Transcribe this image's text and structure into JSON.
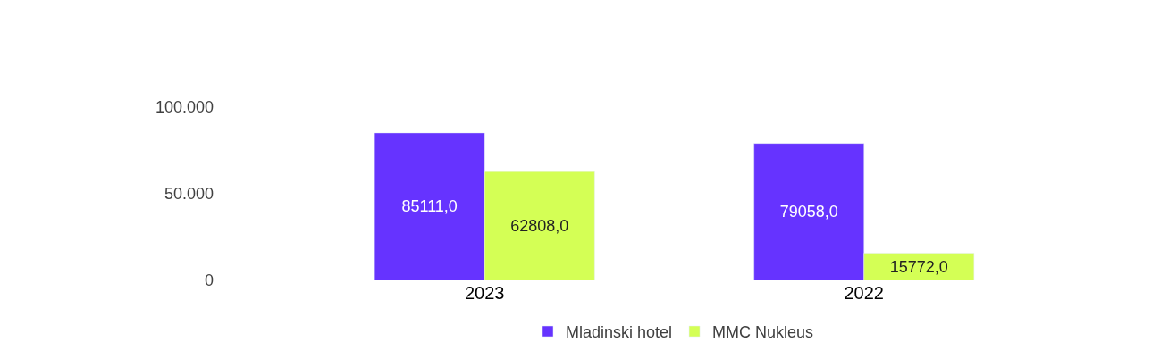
{
  "chart_data": {
    "type": "bar",
    "categories": [
      "2023",
      "2022"
    ],
    "series": [
      {
        "name": "Mladinski hotel",
        "color": "#6633ff",
        "values": [
          85111.0,
          79058.0
        ],
        "value_labels": [
          "85111,0",
          "79058,0"
        ]
      },
      {
        "name": "MMC Nukleus",
        "color": "#d4ff55",
        "values": [
          62808.0,
          15772.0
        ],
        "value_labels": [
          "62808,0",
          "15772,0"
        ]
      }
    ],
    "ylim": [
      0,
      100000
    ],
    "yticks": [
      {
        "value": 0,
        "label": "0"
      },
      {
        "value": 50000,
        "label": "50.000"
      },
      {
        "value": 100000,
        "label": "100.000"
      }
    ],
    "legend": "bottom"
  }
}
